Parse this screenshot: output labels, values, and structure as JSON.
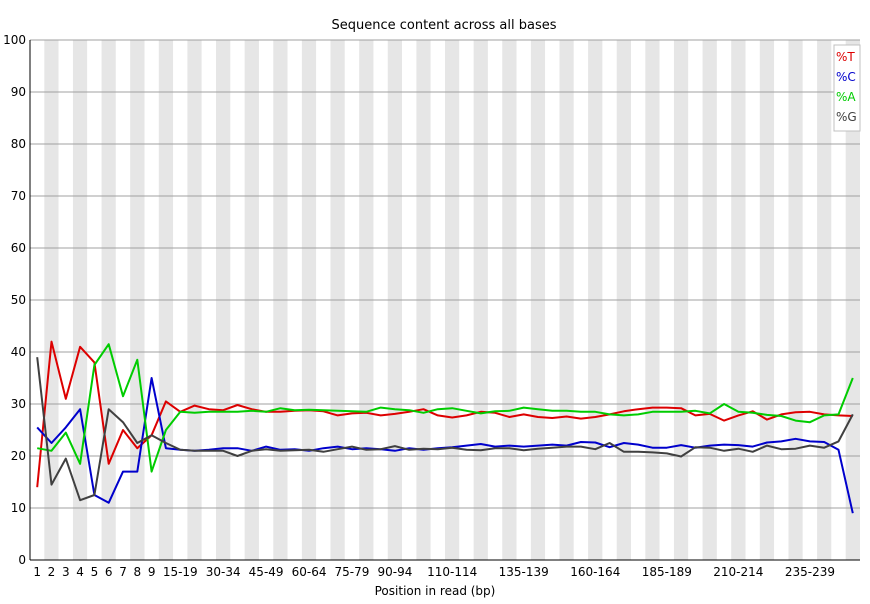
{
  "chart_data": {
    "type": "line",
    "title": "Sequence content across all bases",
    "xlabel": "Position in read (bp)",
    "ylabel": "",
    "ylim": [
      0,
      100
    ],
    "yticks": [
      0,
      10,
      20,
      30,
      40,
      50,
      60,
      70,
      80,
      90,
      100
    ],
    "grid": true,
    "legend_position": "top-right",
    "categories": [
      "1",
      "2",
      "3",
      "4",
      "5",
      "6",
      "7",
      "8",
      "9",
      "10-14",
      "15-19",
      "20-24",
      "25-29",
      "30-34",
      "35-39",
      "40-44",
      "45-49",
      "50-54",
      "55-59",
      "60-64",
      "65-69",
      "70-74",
      "75-79",
      "80-84",
      "85-89",
      "90-94",
      "95-99",
      "100-104",
      "105-109",
      "110-114",
      "115-119",
      "120-124",
      "125-129",
      "130-134",
      "135-139",
      "140-144",
      "145-149",
      "150-154",
      "155-159",
      "160-164",
      "165-169",
      "170-174",
      "175-179",
      "180-184",
      "185-189",
      "190-194",
      "195-199",
      "200-204",
      "205-209",
      "210-214",
      "215-219",
      "220-224",
      "225-229",
      "230-234",
      "235-239",
      "240-244",
      "245-249",
      "250-251"
    ],
    "tick_labels": [
      "1",
      "2",
      "3",
      "4",
      "5",
      "6",
      "7",
      "8",
      "9",
      "15-19",
      "30-34",
      "45-49",
      "60-64",
      "75-79",
      "90-94",
      "110-114",
      "135-139",
      "160-164",
      "185-189",
      "210-214",
      "235-239"
    ],
    "series": [
      {
        "name": "%T",
        "color": "#dd0000",
        "values": [
          14,
          42,
          31,
          41,
          38,
          18.5,
          25,
          21.5,
          24,
          30.5,
          28.5,
          29.7,
          29,
          28.8,
          29.8,
          29,
          28.5,
          28.5,
          28.7,
          28.8,
          28.6,
          27.8,
          28.2,
          28.3,
          27.8,
          28.1,
          28.5,
          29,
          27.8,
          27.4,
          27.8,
          28.5,
          28.3,
          27.5,
          28,
          27.5,
          27.3,
          27.6,
          27.2,
          27.5,
          28,
          28.6,
          29,
          29.3,
          29.3,
          29.2,
          27.8,
          28.1,
          26.8,
          27.8,
          28.6,
          27,
          28,
          28.4,
          28.5,
          28,
          27.8,
          27.7
        ]
      },
      {
        "name": "%C",
        "color": "#0000cc",
        "values": [
          25.5,
          22.5,
          25.5,
          29,
          12.5,
          11,
          17,
          17,
          35,
          21.5,
          21.2,
          21,
          21.2,
          21.5,
          21.5,
          21,
          21.8,
          21.2,
          21.3,
          21,
          21.5,
          21.8,
          21.3,
          21.5,
          21.3,
          21,
          21.5,
          21.2,
          21.5,
          21.7,
          22,
          22.3,
          21.8,
          22,
          21.8,
          22,
          22.2,
          22,
          22.7,
          22.6,
          21.7,
          22.5,
          22.2,
          21.6,
          21.6,
          22.1,
          21.6,
          22,
          22.2,
          22.1,
          21.8,
          22.6,
          22.8,
          23.3,
          22.8,
          22.7,
          21.2,
          9
        ]
      },
      {
        "name": "%A",
        "color": "#00cc00",
        "values": [
          21.5,
          21,
          24.5,
          18.5,
          37.5,
          41.5,
          31.5,
          38.5,
          17,
          25,
          28.5,
          28.3,
          28.5,
          28.5,
          28.5,
          28.7,
          28.5,
          29.2,
          28.8,
          28.9,
          28.8,
          28.7,
          28.6,
          28.5,
          29.3,
          29,
          28.8,
          28.3,
          29,
          29.2,
          28.7,
          28.2,
          28.6,
          28.7,
          29.3,
          29,
          28.7,
          28.7,
          28.5,
          28.5,
          28,
          27.8,
          28,
          28.5,
          28.5,
          28.5,
          28.7,
          28.2,
          30,
          28.5,
          28.3,
          27.9,
          27.7,
          26.8,
          26.5,
          27.8,
          28,
          35
        ]
      },
      {
        "name": "%G",
        "color": "#404040",
        "values": [
          39,
          14.5,
          19.5,
          11.5,
          12.5,
          29,
          26.5,
          22.5,
          24,
          22.5,
          21.2,
          21,
          21,
          21,
          20,
          21,
          21.3,
          21,
          21.1,
          21.2,
          20.8,
          21.3,
          21.8,
          21.2,
          21.3,
          21.9,
          21.2,
          21.4,
          21.3,
          21.6,
          21.2,
          21.1,
          21.5,
          21.5,
          21.1,
          21.4,
          21.6,
          21.8,
          21.8,
          21.3,
          22.5,
          20.8,
          20.8,
          20.7,
          20.5,
          19.9,
          21.7,
          21.6,
          21,
          21.4,
          20.8,
          22,
          21.3,
          21.4,
          22,
          21.6,
          22.8,
          28
        ]
      }
    ]
  }
}
